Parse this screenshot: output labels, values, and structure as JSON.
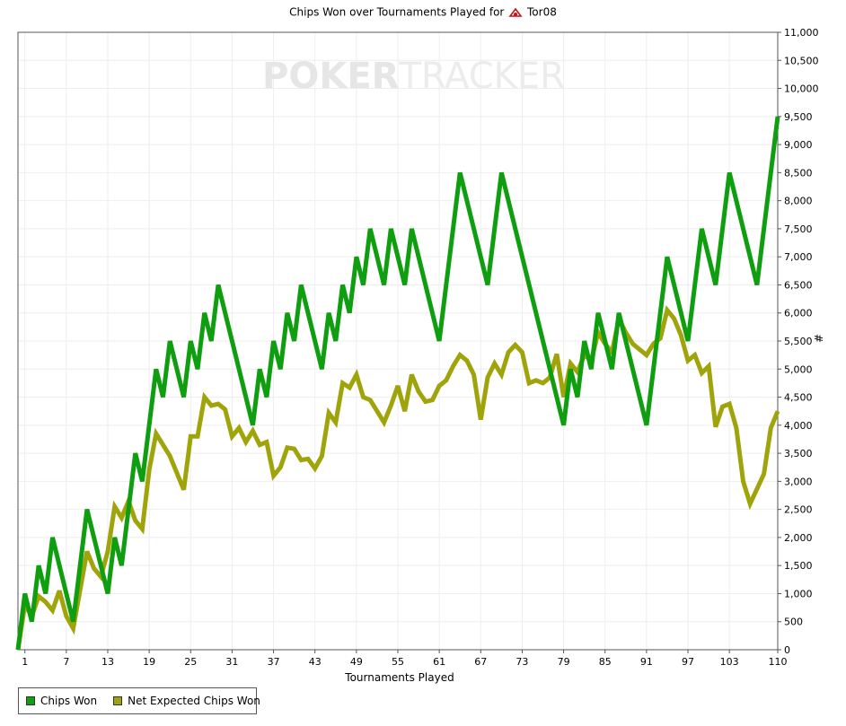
{
  "title_prefix": "Chips Won over Tournaments Played for",
  "player_name": "Tor08",
  "watermark": {
    "part1": "POKER",
    "part2": "TRACKER"
  },
  "colors": {
    "chips_won": "#0f9e0f",
    "net_expected": "#9fa40a",
    "grid": "#eeeeee"
  },
  "chart_data": {
    "type": "line",
    "xlabel": "Tournaments Played",
    "ylabel": "#",
    "xlim": [
      0,
      110
    ],
    "ylim": [
      0,
      11000
    ],
    "x_ticks": [
      1,
      7,
      13,
      19,
      25,
      31,
      37,
      43,
      49,
      55,
      61,
      67,
      73,
      79,
      85,
      91,
      97,
      103,
      110
    ],
    "y_ticks": [
      0,
      500,
      1000,
      1500,
      2000,
      2500,
      3000,
      3500,
      4000,
      4500,
      5000,
      5500,
      6000,
      6500,
      7000,
      7500,
      8000,
      8500,
      9000,
      9500,
      10000,
      10500,
      11000
    ],
    "legend_position": "bottom-left",
    "grid": true,
    "series": [
      {
        "name": "Chips Won",
        "points": [
          [
            0,
            0
          ],
          [
            1,
            1000
          ],
          [
            2,
            500
          ],
          [
            3,
            1500
          ],
          [
            4,
            1000
          ],
          [
            5,
            2000
          ],
          [
            8,
            500
          ],
          [
            10,
            2500
          ],
          [
            13,
            1000
          ],
          [
            14,
            2000
          ],
          [
            15,
            1500
          ],
          [
            17,
            3500
          ],
          [
            18,
            3000
          ],
          [
            20,
            5000
          ],
          [
            21,
            4500
          ],
          [
            22,
            5500
          ],
          [
            24,
            4500
          ],
          [
            25,
            5500
          ],
          [
            26,
            5000
          ],
          [
            27,
            6000
          ],
          [
            28,
            5500
          ],
          [
            29,
            6500
          ],
          [
            34,
            4000
          ],
          [
            35,
            5000
          ],
          [
            36,
            4500
          ],
          [
            37,
            5500
          ],
          [
            38,
            5000
          ],
          [
            39,
            6000
          ],
          [
            40,
            5500
          ],
          [
            41,
            6500
          ],
          [
            44,
            5000
          ],
          [
            45,
            6000
          ],
          [
            46,
            5500
          ],
          [
            47,
            6500
          ],
          [
            48,
            6000
          ],
          [
            49,
            7000
          ],
          [
            50,
            6500
          ],
          [
            51,
            7500
          ],
          [
            53,
            6500
          ],
          [
            54,
            7500
          ],
          [
            56,
            6500
          ],
          [
            57,
            7500
          ],
          [
            61,
            5500
          ],
          [
            64,
            8500
          ],
          [
            68,
            6500
          ],
          [
            70,
            8500
          ],
          [
            79,
            4000
          ],
          [
            80,
            5000
          ],
          [
            81,
            4500
          ],
          [
            82,
            5500
          ],
          [
            83,
            5000
          ],
          [
            84,
            6000
          ],
          [
            86,
            5000
          ],
          [
            87,
            6000
          ],
          [
            91,
            4000
          ],
          [
            94,
            7000
          ],
          [
            97,
            5500
          ],
          [
            99,
            7500
          ],
          [
            101,
            6500
          ],
          [
            103,
            8500
          ],
          [
            107,
            6500
          ],
          [
            110,
            9500
          ]
        ]
      },
      {
        "name": "Net Expected Chips Won",
        "points": [
          [
            0,
            0
          ],
          [
            1,
            800
          ],
          [
            2,
            600
          ],
          [
            3,
            950
          ],
          [
            4,
            850
          ],
          [
            5,
            700
          ],
          [
            6,
            1050
          ],
          [
            7,
            600
          ],
          [
            8,
            380
          ],
          [
            10,
            1750
          ],
          [
            11,
            1450
          ],
          [
            12,
            1300
          ],
          [
            13,
            1750
          ],
          [
            14,
            2550
          ],
          [
            15,
            2350
          ],
          [
            16,
            2650
          ],
          [
            17,
            2300
          ],
          [
            18,
            2150
          ],
          [
            19,
            3200
          ],
          [
            20,
            3850
          ],
          [
            22,
            3450
          ],
          [
            24,
            2850
          ],
          [
            25,
            3800
          ],
          [
            26,
            3800
          ],
          [
            27,
            4500
          ],
          [
            28,
            4350
          ],
          [
            29,
            4380
          ],
          [
            30,
            4280
          ],
          [
            31,
            3800
          ],
          [
            32,
            3950
          ],
          [
            33,
            3700
          ],
          [
            34,
            3900
          ],
          [
            35,
            3650
          ],
          [
            36,
            3700
          ],
          [
            37,
            3100
          ],
          [
            38,
            3250
          ],
          [
            39,
            3600
          ],
          [
            40,
            3580
          ],
          [
            41,
            3380
          ],
          [
            42,
            3400
          ],
          [
            43,
            3230
          ],
          [
            44,
            3450
          ],
          [
            45,
            4220
          ],
          [
            46,
            4050
          ],
          [
            47,
            4750
          ],
          [
            48,
            4670
          ],
          [
            49,
            4900
          ],
          [
            50,
            4500
          ],
          [
            51,
            4450
          ],
          [
            52,
            4250
          ],
          [
            53,
            4050
          ],
          [
            54,
            4350
          ],
          [
            55,
            4700
          ],
          [
            56,
            4250
          ],
          [
            57,
            4900
          ],
          [
            58,
            4600
          ],
          [
            59,
            4420
          ],
          [
            60,
            4450
          ],
          [
            61,
            4700
          ],
          [
            62,
            4800
          ],
          [
            63,
            5050
          ],
          [
            64,
            5250
          ],
          [
            65,
            5150
          ],
          [
            66,
            4900
          ],
          [
            67,
            4100
          ],
          [
            68,
            4850
          ],
          [
            69,
            5100
          ],
          [
            70,
            4900
          ],
          [
            71,
            5300
          ],
          [
            72,
            5430
          ],
          [
            73,
            5300
          ],
          [
            74,
            4750
          ],
          [
            75,
            4800
          ],
          [
            76,
            4750
          ],
          [
            77,
            4850
          ],
          [
            78,
            5270
          ],
          [
            79,
            4500
          ],
          [
            80,
            5100
          ],
          [
            81,
            4950
          ],
          [
            82,
            5250
          ],
          [
            83,
            5150
          ],
          [
            84,
            5650
          ],
          [
            85,
            5450
          ],
          [
            86,
            5300
          ],
          [
            87,
            5900
          ],
          [
            88,
            5650
          ],
          [
            89,
            5450
          ],
          [
            90,
            5350
          ],
          [
            91,
            5250
          ],
          [
            92,
            5450
          ],
          [
            93,
            5550
          ],
          [
            94,
            6050
          ],
          [
            95,
            5900
          ],
          [
            96,
            5600
          ],
          [
            97,
            5150
          ],
          [
            98,
            5250
          ],
          [
            99,
            4930
          ],
          [
            100,
            5050
          ],
          [
            101,
            3970
          ],
          [
            102,
            4330
          ],
          [
            103,
            4380
          ],
          [
            104,
            3950
          ],
          [
            105,
            3000
          ],
          [
            106,
            2600
          ],
          [
            108,
            3130
          ],
          [
            109,
            3950
          ],
          [
            110,
            4250
          ]
        ]
      }
    ]
  }
}
